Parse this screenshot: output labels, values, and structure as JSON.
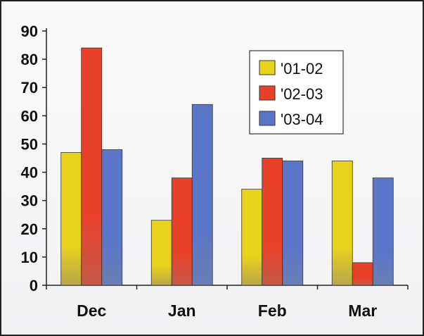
{
  "chart_data": {
    "type": "bar",
    "title": "",
    "xlabel": "",
    "ylabel": "",
    "categories": [
      "Dec",
      "Jan",
      "Feb",
      "Mar"
    ],
    "series": [
      {
        "name": "'01-02",
        "values": [
          47,
          23,
          34,
          44
        ],
        "color": "#e8d21c"
      },
      {
        "name": "'02-03",
        "values": [
          84,
          38,
          45,
          8
        ],
        "color": "#e8412a"
      },
      {
        "name": "'03-04",
        "values": [
          48,
          64,
          44,
          38
        ],
        "color": "#5b76c8"
      }
    ],
    "ylim": [
      0,
      90
    ],
    "yticks": [
      "0",
      "10",
      "20",
      "30",
      "40",
      "50",
      "60",
      "70",
      "80",
      "90"
    ],
    "grid": false,
    "legend_position": "top-right"
  }
}
